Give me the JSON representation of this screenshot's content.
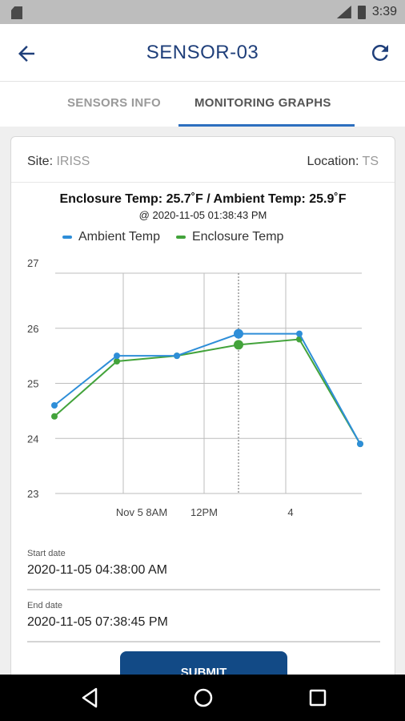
{
  "status_bar": {
    "time": "3:39"
  },
  "app_bar": {
    "title": "SENSOR-03"
  },
  "tabs": {
    "inactive": "SENSORS INFO",
    "active": "MONITORING GRAPHS"
  },
  "info": {
    "site_label": "Site:",
    "site_value": "IRISS",
    "location_label": "Location:",
    "location_value": "TS"
  },
  "chart_data": {
    "type": "line",
    "title": "Enclosure Temp: 25.7˚F / Ambient Temp: 25.9˚F",
    "subtitle": "@ 2020-11-05 01:38:43 PM",
    "x_ticks": [
      "Nov 5 8AM",
      "12PM",
      "4"
    ],
    "ylim": [
      23,
      27
    ],
    "y_ticks": [
      "27",
      "26",
      "25",
      "24",
      "23"
    ],
    "legend": "top",
    "grid": true,
    "x_points": [
      "2020-11-05 04:38",
      "2020-11-05 08:38",
      "2020-11-05 11:38",
      "2020-11-05 01:38 PM",
      "2020-11-05 04:38 PM",
      "2020-11-05 07:38 PM"
    ],
    "series": [
      {
        "name": "Ambient Temp",
        "color": "#2e8ed8",
        "values": [
          24.6,
          25.5,
          25.5,
          25.9,
          25.9,
          23.9
        ]
      },
      {
        "name": "Enclosure Temp",
        "color": "#43a33b",
        "values": [
          24.4,
          25.4,
          25.5,
          25.7,
          25.8,
          23.9
        ]
      }
    ]
  },
  "form": {
    "start_label": "Start date",
    "start_value": "2020-11-05 04:38:00 AM",
    "end_label": "End date",
    "end_value": "2020-11-05 07:38:45 PM",
    "submit_label": "SUBMIT"
  }
}
